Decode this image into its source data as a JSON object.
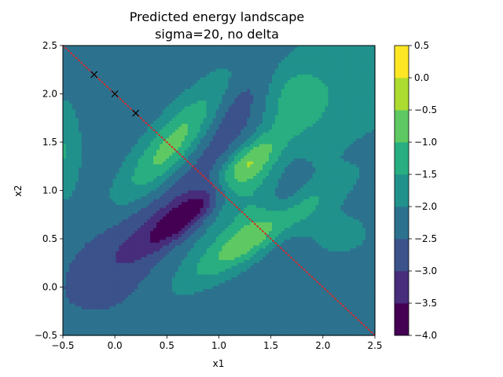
{
  "chart_data": {
    "type": "heatmap",
    "subtype": "filled-contour",
    "title": "Predicted energy landscape",
    "subtitle": "sigma=20, no delta",
    "xlabel": "x1",
    "ylabel": "x2",
    "xlim": [
      -0.5,
      2.5
    ],
    "ylim": [
      -0.5,
      2.5
    ],
    "xticks": [
      "−0.5",
      "0.0",
      "0.5",
      "1.0",
      "1.5",
      "2.0",
      "2.5"
    ],
    "yticks": [
      "−0.5",
      "0.0",
      "0.5",
      "1.0",
      "1.5",
      "2.0",
      "2.5"
    ],
    "colorbar": {
      "levels": [
        -4.0,
        -3.5,
        -3.0,
        -2.5,
        -2.0,
        -1.5,
        -1.0,
        -0.5,
        0.0,
        0.5
      ],
      "ticks": [
        "−4.0",
        "−3.5",
        "−3.0",
        "−2.5",
        "−2.0",
        "−1.5",
        "−1.0",
        "−0.5",
        "0.0",
        "0.5"
      ],
      "colors": [
        "#440154",
        "#472d7b",
        "#3b528b",
        "#2c728e",
        "#21918c",
        "#28ae80",
        "#5ec962",
        "#addc30",
        "#fde725"
      ]
    },
    "line": {
      "style": "dotted",
      "color": "#d62728",
      "points": [
        [
          -0.5,
          2.5
        ],
        [
          2.5,
          -0.5
        ]
      ]
    },
    "markers": {
      "symbol": "x",
      "color": "#000000",
      "points": [
        [
          -0.2,
          2.2
        ],
        [
          0.0,
          2.0
        ],
        [
          0.2,
          1.8
        ]
      ]
    },
    "blobs": [
      {
        "x": 0.0,
        "y": 0.0,
        "sx": 9,
        "sy": 9,
        "rot": 0,
        "amp": -2.3
      },
      {
        "x": 0.6,
        "y": 1.5,
        "sx": 0.16,
        "sy": 0.55,
        "rot": -40,
        "amp": 1.7
      },
      {
        "x": 1.25,
        "y": 1.25,
        "sx": 0.12,
        "sy": 0.3,
        "rot": -45,
        "amp": 1.9
      },
      {
        "x": 1.4,
        "y": 0.55,
        "sx": 0.13,
        "sy": 0.55,
        "rot": -55,
        "amp": 1.6
      },
      {
        "x": 1.4,
        "y": 0.95,
        "sx": 0.18,
        "sy": 0.6,
        "rot": -45,
        "amp": 0.7
      },
      {
        "x": 0.7,
        "y": 0.75,
        "sx": 0.1,
        "sy": 0.35,
        "rot": -50,
        "amp": -1.6
      },
      {
        "x": 0.5,
        "y": 0.85,
        "sx": 0.2,
        "sy": 0.75,
        "rot": -45,
        "amp": -0.6
      },
      {
        "x": 1.1,
        "y": 1.85,
        "sx": 0.16,
        "sy": 0.45,
        "rot": -40,
        "amp": -0.8
      },
      {
        "x": 1.65,
        "y": 0.95,
        "sx": 0.14,
        "sy": 0.4,
        "rot": -15,
        "amp": -0.7
      },
      {
        "x": 1.7,
        "y": 1.9,
        "sx": 0.22,
        "sy": 0.3,
        "rot": 0,
        "amp": 0.9
      },
      {
        "x": 2.2,
        "y": 2.1,
        "sx": 0.35,
        "sy": 0.35,
        "rot": 0,
        "amp": 0.5
      },
      {
        "x": 2.15,
        "y": 0.55,
        "sx": 0.2,
        "sy": 0.15,
        "rot": 0,
        "amp": 0.5
      },
      {
        "x": -0.5,
        "y": 1.4,
        "sx": 0.12,
        "sy": 0.35,
        "rot": 0,
        "amp": 0.8
      },
      {
        "x": 0.0,
        "y": 0.2,
        "sx": 0.3,
        "sy": 0.4,
        "rot": -20,
        "amp": -0.3
      }
    ]
  }
}
